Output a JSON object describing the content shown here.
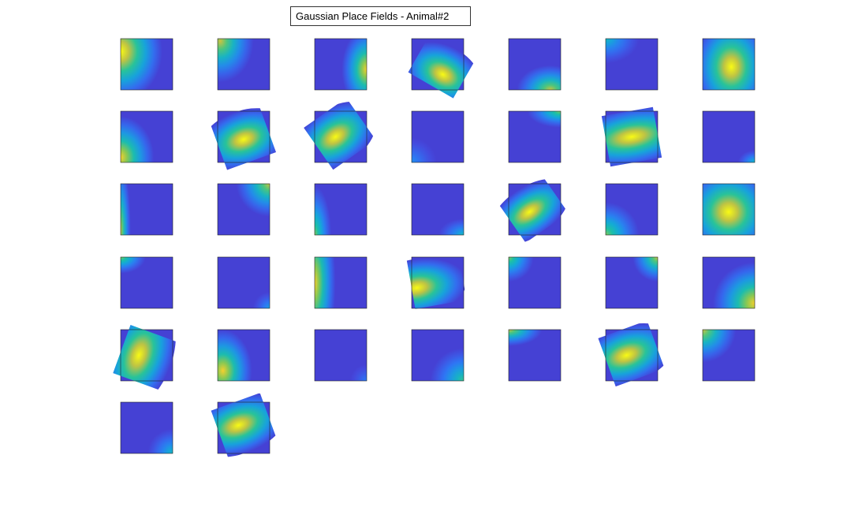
{
  "title": "Gaussian Place Fields - Animal#2"
}
